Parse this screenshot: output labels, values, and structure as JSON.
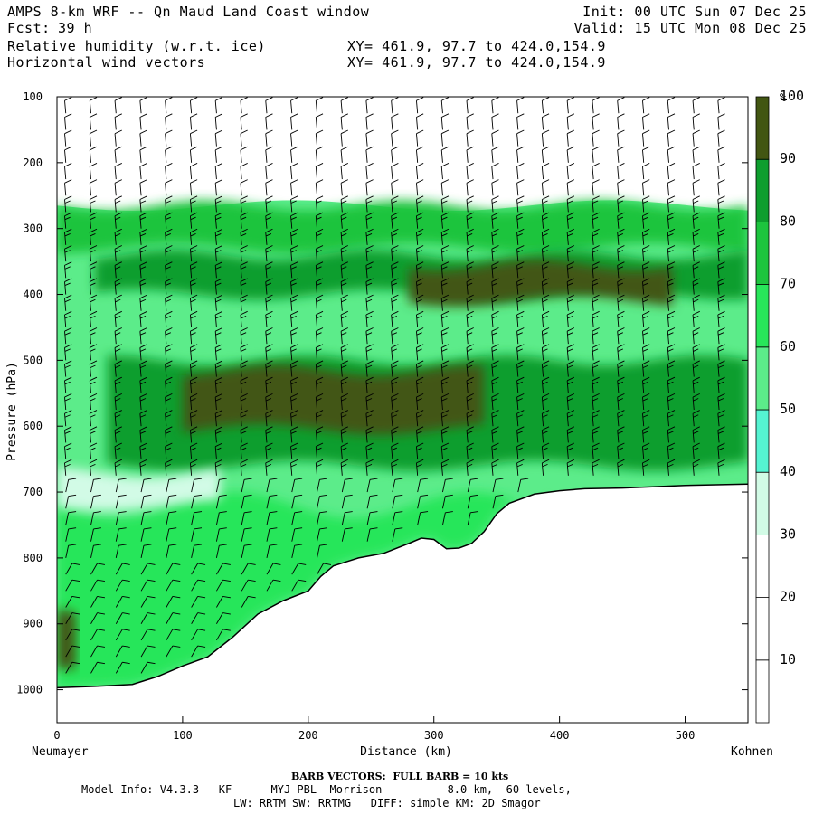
{
  "header": {
    "title": "AMPS 8-km WRF -- Qn Maud Land Coast window",
    "forecast_label": "Fcst:",
    "forecast_hours": "39 h",
    "init": "Init: 00 UTC Sun 07 Dec 25",
    "valid": "Valid: 15 UTC Mon 08 Dec 25",
    "field1": "Relative humidity (w.r.t. ice)",
    "field2": "Horizontal wind vectors",
    "xy1": "XY= 461.9, 97.7 to 424.0,154.9",
    "xy2": "XY= 461.9, 97.7 to 424.0,154.9"
  },
  "chart_data": {
    "type": "heatmap",
    "title": "Relative humidity (w.r.t. ice) cross-section with horizontal wind barbs",
    "xlabel": "Distance (km)",
    "ylabel": "Pressure (hPa)",
    "xlim": [
      0,
      550
    ],
    "ylim": [
      1050,
      100
    ],
    "x_ticks": [
      0,
      100,
      200,
      300,
      400,
      500
    ],
    "y_ticks": [
      100,
      200,
      300,
      400,
      500,
      600,
      700,
      800,
      900,
      1000
    ],
    "left_endpoint": "Neumayer",
    "right_endpoint": "Kohnen",
    "colorbar": {
      "unit": "%",
      "levels": [
        10,
        20,
        30,
        40,
        50,
        60,
        70,
        80,
        90,
        100
      ],
      "colors": [
        "#ffffff",
        "#ffffff",
        "#ffffff",
        "#d2fbe6",
        "#55f3d2",
        "#5cec8a",
        "#28e65a",
        "#1dc43e",
        "#0e9e2e",
        "#425612"
      ]
    },
    "terrain_surface_hpa": {
      "x": [
        0,
        30,
        60,
        80,
        100,
        120,
        140,
        160,
        180,
        200,
        210,
        220,
        240,
        260,
        280,
        290,
        300,
        310,
        320,
        330,
        340,
        350,
        360,
        380,
        400,
        420,
        450,
        500,
        550
      ],
      "p": [
        997,
        995,
        992,
        980,
        964,
        950,
        920,
        885,
        865,
        850,
        828,
        812,
        800,
        793,
        778,
        770,
        772,
        786,
        785,
        778,
        760,
        733,
        717,
        703,
        698,
        695,
        694,
        690,
        688
      ]
    },
    "rh_layers": [
      {
        "name": "upper moist layer",
        "p_top_hpa": 265,
        "p_bottom_hpa": 330,
        "rh_percent": 75
      },
      {
        "name": "upper saturated band",
        "x": [
          30,
          550
        ],
        "p_top_hpa": 340,
        "p_bottom_hpa": 400,
        "rh_percent": 90
      },
      {
        "name": "upper core",
        "x": [
          280,
          490
        ],
        "p_top_hpa": 355,
        "p_bottom_hpa": 410,
        "rh_percent": 100
      },
      {
        "name": "mid saturated band",
        "x": [
          40,
          550
        ],
        "p_top_hpa": 500,
        "p_bottom_hpa": 660,
        "rh_percent": 90
      },
      {
        "name": "mid core",
        "x": [
          100,
          340
        ],
        "p_top_hpa": 515,
        "p_bottom_hpa": 605,
        "rh_percent": 100
      },
      {
        "name": "drier slot",
        "x": [
          0,
          130
        ],
        "p_top_hpa": 670,
        "p_bottom_hpa": 720,
        "rh_percent": 40
      },
      {
        "name": "boundary layer maximum",
        "x": [
          0,
          15
        ],
        "p_top_hpa": 880,
        "p_bottom_hpa": 960,
        "rh_percent": 100
      }
    ],
    "barb_note": "BARB VECTORS: FULL BARB = 10 kts"
  },
  "footer": {
    "barb_note": "BARB VECTORS:  FULL BARB = 10 kts",
    "model_info": "Model Info: V4.3.3   KF      MYJ PBL  Morrison          8.0 km,  60 levels,",
    "physics": "LW: RRTM SW: RRTMG   DIFF: simple KM: 2D Smagor"
  }
}
